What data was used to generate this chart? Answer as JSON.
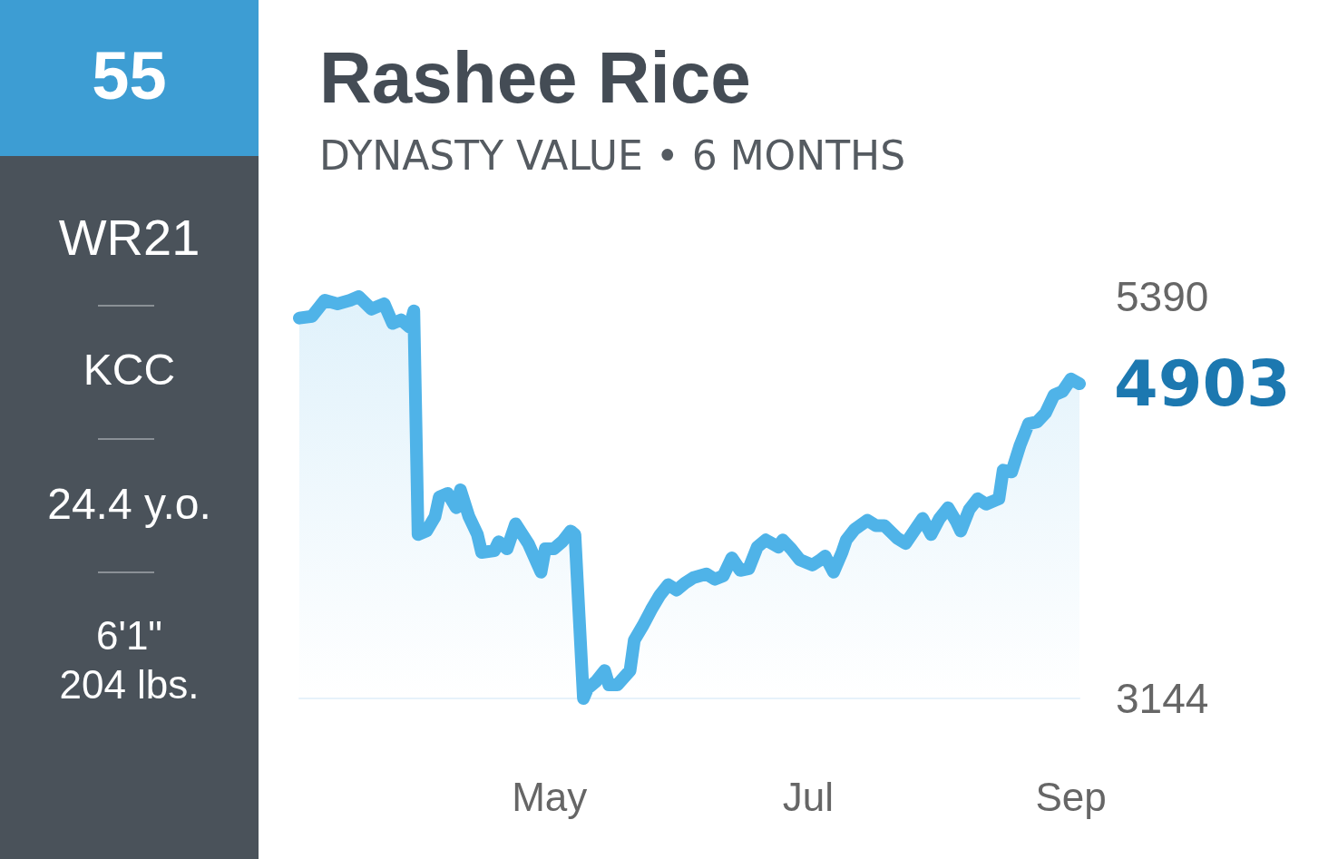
{
  "chart_data": [
    {
      "type": "other",
      "annotations": [
        "55",
        "WR21",
        "KCC",
        "24.4 y.o.",
        "6'1\"",
        "204 lbs."
      ]
    },
    {
      "type": "area",
      "title": "Rashee Rice",
      "subtitle": "DYNASTY VALUE • 6 MONTHS",
      "color": "#4fb3e8",
      "x": [
        "--03-03",
        "--03-06",
        "--03-09",
        "--03-12",
        "--03-15",
        "--03-17",
        "--03-20",
        "--03-23",
        "--03-25",
        "--03-27",
        "--03-29",
        "--03-30",
        "--03-31",
        "--04-02",
        "--04-04",
        "--04-05",
        "--04-07",
        "--04-09",
        "--04-10",
        "--04-12",
        "--04-14",
        "--04-15",
        "--04-18",
        "--04-19",
        "--04-21",
        "--04-23",
        "--04-26",
        "--04-29",
        "--04-30",
        "--05-02",
        "--05-04",
        "--05-06",
        "--05-07",
        "--05-08",
        "--05-09",
        "--05-10",
        "--05-12",
        "--05-14",
        "--05-15",
        "--05-17",
        "--05-20",
        "--05-21",
        "--05-23",
        "--05-25",
        "--05-27",
        "--05-29",
        "--05-31",
        "--06-02",
        "--06-04",
        "--06-07",
        "--06-09",
        "--06-11",
        "--06-13",
        "--06-15",
        "--06-17",
        "--06-19",
        "--06-21",
        "--06-24",
        "--06-25",
        "--06-27",
        "--06-29",
        "--07-02",
        "--07-04",
        "--07-05",
        "--07-07",
        "--07-09",
        "--07-10",
        "--07-12",
        "--07-15",
        "--07-17",
        "--07-19",
        "--07-22",
        "--07-24",
        "--07-26",
        "--07-28",
        "--07-30",
        "--08-01",
        "--08-03",
        "--08-05",
        "--08-06",
        "--08-08",
        "--08-10",
        "--08-12",
        "--08-15",
        "--08-16",
        "--08-18",
        "--08-20",
        "--08-22",
        "--08-24",
        "--08-26",
        "--08-28",
        "--08-30",
        "--09-01",
        "--09-03"
      ],
      "values": [
        5270,
        5280,
        5370,
        5350,
        5370,
        5390,
        5320,
        5350,
        5240,
        5260,
        5220,
        5310,
        4060,
        4080,
        4160,
        4270,
        4290,
        4210,
        4310,
        4160,
        4060,
        3960,
        3970,
        4020,
        3980,
        4120,
        4010,
        3850,
        3980,
        3980,
        4020,
        4080,
        4060,
        3600,
        3144,
        3200,
        3240,
        3300,
        3220,
        3220,
        3300,
        3470,
        3550,
        3640,
        3720,
        3780,
        3750,
        3790,
        3820,
        3840,
        3810,
        3830,
        3930,
        3860,
        3870,
        3990,
        4030,
        3990,
        4030,
        3980,
        3920,
        3890,
        3920,
        3940,
        3850,
        3960,
        4030,
        4090,
        4140,
        4110,
        4110,
        4040,
        4010,
        4080,
        4150,
        4060,
        4150,
        4210,
        4130,
        4080,
        4200,
        4260,
        4230,
        4260,
        4420,
        4410,
        4560,
        4680,
        4690,
        4740,
        4840,
        4860,
        4930,
        4903
      ],
      "xticks": [
        {
          "value": "--05-01",
          "label": "May"
        },
        {
          "value": "--07-01",
          "label": "Jul"
        },
        {
          "value": "--09-01",
          "label": "Sep"
        }
      ],
      "xlim": [
        "--03-03",
        "--09-03"
      ],
      "ylim": [
        3144,
        5390
      ],
      "yticks": [
        3144,
        5390
      ],
      "annotations": [
        {
          "text": "4903",
          "x": "--09-03",
          "y": 4903
        }
      ]
    }
  ]
}
